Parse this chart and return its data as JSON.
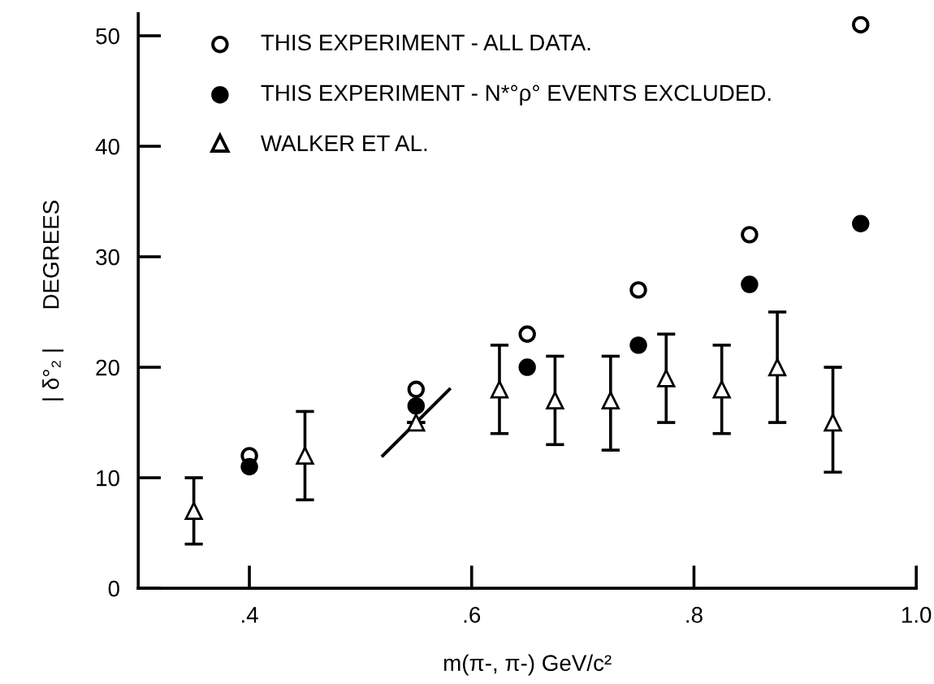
{
  "chart_data": {
    "type": "scatter",
    "xlabel": "m(π-, π-) GeV/c²",
    "ylabel": "| δ°₂ |      DEGREES",
    "xlim": [
      0.3,
      1.0
    ],
    "ylim": [
      0,
      52
    ],
    "xticks": [
      {
        "value": 0.4,
        "label": ".4"
      },
      {
        "value": 0.6,
        "label": ".6"
      },
      {
        "value": 0.8,
        "label": ".8"
      },
      {
        "value": 1.0,
        "label": "1.0"
      }
    ],
    "yticks": [
      0,
      10,
      20,
      30,
      40,
      50
    ],
    "grid": false,
    "legend": "top left",
    "series": [
      {
        "name": "THIS EXPERIMENT - ALL DATA.",
        "marker": "circle",
        "color": "#000000",
        "x": [
          0.4,
          0.55,
          0.65,
          0.75,
          0.85,
          0.95
        ],
        "values": [
          12,
          18,
          23,
          27,
          32,
          51
        ]
      },
      {
        "name": "THIS EXPERIMENT - N*°ρ° EVENTS EXCLUDED.",
        "marker": "circle",
        "color": "#000000",
        "x": [
          0.4,
          0.55,
          0.65,
          0.75,
          0.85,
          0.95
        ],
        "values": [
          11,
          16.5,
          20,
          22,
          27.5,
          33
        ]
      },
      {
        "name": "WALKER ET AL.",
        "marker": "triangle",
        "color": "#000000",
        "x": [
          0.35,
          0.45,
          0.55,
          0.625,
          0.675,
          0.725,
          0.775,
          0.825,
          0.875,
          0.925
        ],
        "values": [
          7,
          12,
          15,
          18,
          17,
          17,
          19,
          18,
          20,
          15
        ],
        "errors": [
          [
            4,
            10
          ],
          [
            8,
            16
          ],
          null,
          [
            14,
            22
          ],
          [
            13,
            21
          ],
          [
            12.5,
            21
          ],
          [
            15,
            23
          ],
          [
            14,
            22
          ],
          [
            15,
            25
          ],
          [
            10.5,
            20
          ]
        ]
      },
      {
        "type": "line",
        "marker": "none",
        "color": "#000000",
        "x": [
          0.52,
          0.58
        ],
        "values": [
          12,
          18
        ]
      }
    ]
  }
}
